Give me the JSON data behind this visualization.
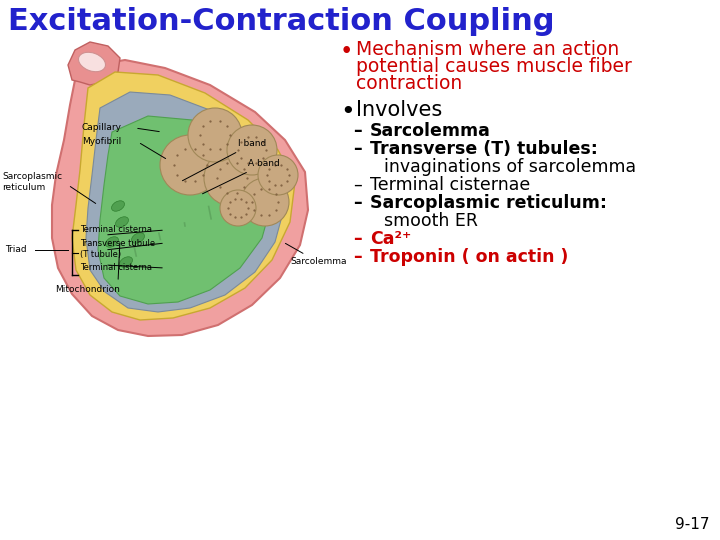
{
  "title": "Excitation-Contraction Coupling",
  "title_color": "#2222CC",
  "title_fontsize": 22,
  "bg_color": "#FFFFFF",
  "bullet1_text_lines": [
    "Mechanism where an action",
    "potential causes muscle fiber",
    "contraction"
  ],
  "bullet1_color": "#CC0000",
  "bullet1_fontsize": 13.5,
  "bullet2_text": "Involves",
  "bullet2_fontsize": 15,
  "sub_fontsize": 12.5,
  "sub_items": [
    {
      "text": "Sarcolemma",
      "bold": true,
      "color": "#000000",
      "cont": null
    },
    {
      "text": "Transverse (T) tubules:",
      "bold": true,
      "color": "#000000",
      "cont": "invaginations of sarcolemma"
    },
    {
      "text": "Terminal cisternae",
      "bold": false,
      "color": "#000000",
      "cont": null
    },
    {
      "text": "Sarcoplasmic reticulum:",
      "bold": true,
      "color": "#000000",
      "cont": "smooth ER"
    },
    {
      "text": "Ca²⁺",
      "bold": true,
      "color": "#CC0000",
      "cont": null
    },
    {
      "text": "Troponin ( on actin )",
      "bold": true,
      "color": "#CC0000",
      "cont": null
    }
  ],
  "page_num": "9-17",
  "page_num_fontsize": 11,
  "diagram_labels": {
    "a_band": "A band",
    "i_band": "I band",
    "sarco_ret": "Sarcoplasmic\nreticulum",
    "sarcolemma": "Sarcolemma",
    "terminal_cisterna": "Terminal cisterna",
    "transverse_tubule": "Transverse tubule",
    "t_tubule_paren": "(T tubule)",
    "terminal_cisterna2": "Terminal cisterna",
    "triad": "Triad",
    "capillary": "Capillary",
    "myofibril": "Myofibril",
    "mitochondrion": "Mitochondrion"
  }
}
